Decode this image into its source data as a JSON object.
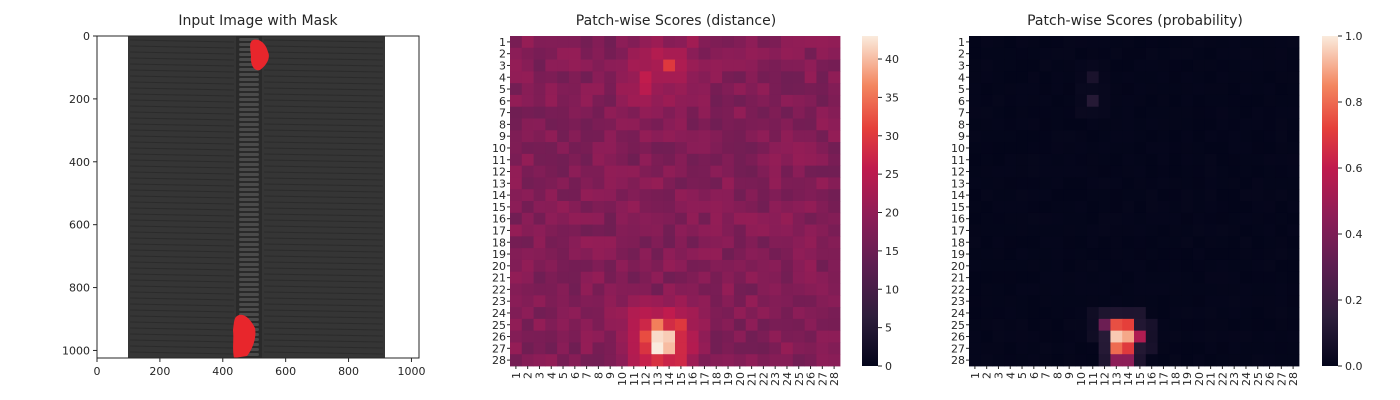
{
  "chart_data": [
    {
      "type": "image",
      "title": "Input Image with Mask",
      "x_ticks": [
        0,
        200,
        400,
        600,
        800,
        1000
      ],
      "y_ticks": [
        0,
        200,
        400,
        600,
        800,
        1000
      ],
      "xlim": [
        0,
        1024
      ],
      "ylim": [
        1024,
        0
      ],
      "image_description_colors": {
        "background": "#ffffff",
        "fabric": "#353535",
        "mask": "#e8262c"
      }
    },
    {
      "type": "heatmap",
      "title": "Patch-wise Scores (distance)",
      "x_labels": [
        "1",
        "2",
        "3",
        "4",
        "5",
        "6",
        "7",
        "8",
        "9",
        "10",
        "11",
        "12",
        "13",
        "14",
        "15",
        "16",
        "17",
        "18",
        "19",
        "20",
        "21",
        "22",
        "23",
        "24",
        "25",
        "26",
        "27",
        "28"
      ],
      "y_labels": [
        "1",
        "2",
        "3",
        "4",
        "5",
        "6",
        "7",
        "8",
        "9",
        "10",
        "11",
        "12",
        "13",
        "14",
        "15",
        "16",
        "17",
        "18",
        "19",
        "20",
        "21",
        "22",
        "23",
        "24",
        "25",
        "26",
        "27",
        "28"
      ],
      "colorbar_ticks": [
        0,
        5,
        10,
        15,
        20,
        25,
        30,
        35,
        40
      ],
      "vmin": 0,
      "vmax": 43,
      "colormap": "rocket",
      "base_value": 18,
      "hotspots": [
        {
          "row": 3,
          "col": 14,
          "value": 30
        },
        {
          "row": 4,
          "col": 12,
          "value": 26
        },
        {
          "row": 5,
          "col": 12,
          "value": 25
        },
        {
          "row": 25,
          "col": 13,
          "value": 36
        },
        {
          "row": 26,
          "col": 13,
          "value": 42
        },
        {
          "row": 27,
          "col": 13,
          "value": 43
        },
        {
          "row": 26,
          "col": 14,
          "value": 41
        },
        {
          "row": 27,
          "col": 14,
          "value": 40
        },
        {
          "row": 25,
          "col": 15,
          "value": 30
        },
        {
          "row": 26,
          "col": 12,
          "value": 32
        }
      ]
    },
    {
      "type": "heatmap",
      "title": "Patch-wise Scores (probability)",
      "x_labels": [
        "1",
        "2",
        "3",
        "4",
        "5",
        "6",
        "7",
        "8",
        "9",
        "10",
        "11",
        "12",
        "13",
        "14",
        "15",
        "16",
        "17",
        "18",
        "19",
        "20",
        "21",
        "22",
        "23",
        "24",
        "25",
        "26",
        "27",
        "28"
      ],
      "y_labels": [
        "1",
        "2",
        "3",
        "4",
        "5",
        "6",
        "7",
        "8",
        "9",
        "10",
        "11",
        "12",
        "13",
        "14",
        "15",
        "16",
        "17",
        "18",
        "19",
        "20",
        "21",
        "22",
        "23",
        "24",
        "25",
        "26",
        "27",
        "28"
      ],
      "colorbar_ticks": [
        0.0,
        0.2,
        0.4,
        0.6,
        0.8,
        1.0
      ],
      "colorbar_tick_labels": [
        "0.0",
        "0.2",
        "0.4",
        "0.6",
        "0.8",
        "1.0"
      ],
      "vmin": 0,
      "vmax": 1,
      "colormap": "rocket",
      "base_value": 0.01,
      "hotspots": [
        {
          "row": 4,
          "col": 11,
          "value": 0.08
        },
        {
          "row": 6,
          "col": 11,
          "value": 0.12
        },
        {
          "row": 25,
          "col": 12,
          "value": 0.35
        },
        {
          "row": 25,
          "col": 13,
          "value": 0.75
        },
        {
          "row": 25,
          "col": 14,
          "value": 0.72
        },
        {
          "row": 26,
          "col": 13,
          "value": 0.95
        },
        {
          "row": 26,
          "col": 14,
          "value": 0.9
        },
        {
          "row": 26,
          "col": 15,
          "value": 0.55
        },
        {
          "row": 27,
          "col": 13,
          "value": 0.8
        },
        {
          "row": 27,
          "col": 14,
          "value": 0.7
        },
        {
          "row": 28,
          "col": 13,
          "value": 0.45
        },
        {
          "row": 28,
          "col": 14,
          "value": 0.45
        }
      ]
    }
  ]
}
